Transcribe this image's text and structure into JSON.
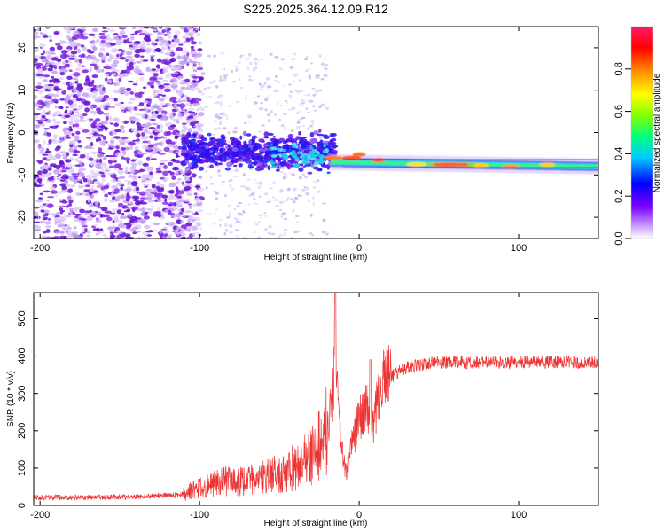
{
  "title": "S225.2025.364.12.09.R12",
  "chart_data": [
    {
      "type": "heatmap",
      "name": "spectrogram",
      "xlabel": "Height of straight line (km)",
      "ylabel": "Frequency (Hz)",
      "xlim": [
        -204,
        150
      ],
      "ylim": [
        -25,
        25
      ],
      "xticks": [
        -200,
        -100,
        0,
        100
      ],
      "yticks": [
        -20,
        -10,
        0,
        10,
        20
      ],
      "colorbar": {
        "label": "Normalized spectral amplitude",
        "range": [
          0,
          1
        ],
        "ticks": [
          0.0,
          0.2,
          0.4,
          0.6,
          0.8
        ],
        "stops": [
          "#ffffff",
          "#c89cff",
          "#7a00ff",
          "#0000ff",
          "#00c8ff",
          "#00ff80",
          "#80ff00",
          "#ffff00",
          "#ff8000",
          "#ff0000",
          "#ff1a66"
        ]
      },
      "line_track": {
        "start_km": -18,
        "end_km": 150,
        "frequency_hz_start": -7,
        "frequency_hz_end": -8,
        "peak_amplitude_km": [
          48,
          68
        ]
      }
    },
    {
      "type": "line",
      "name": "snr",
      "xlabel": "Height of straight line (km)",
      "ylabel": "SNR (10 * v/v)",
      "xlim": [
        -204,
        150
      ],
      "ylim": [
        0,
        570
      ],
      "xticks": [
        -200,
        -100,
        0,
        100
      ],
      "yticks": [
        0,
        100,
        200,
        300,
        400,
        500
      ],
      "color": "#ee3333",
      "series": [
        {
          "name": "SNR",
          "x": [
            -204,
            -190,
            -170,
            -150,
            -130,
            -110,
            -100,
            -90,
            -80,
            -70,
            -60,
            -50,
            -40,
            -30,
            -25,
            -20,
            -18,
            -16,
            -15,
            -14,
            -12,
            -10,
            -8,
            -6,
            -4,
            -2,
            0,
            2,
            4,
            6,
            8,
            10,
            12,
            14,
            16,
            18,
            20,
            25,
            30,
            35,
            40,
            50,
            60,
            70,
            80,
            90,
            100,
            110,
            120,
            130,
            140,
            150
          ],
          "y": [
            20,
            20,
            20,
            21,
            23,
            28,
            40,
            50,
            60,
            55,
            65,
            75,
            90,
            110,
            140,
            180,
            250,
            290,
            570,
            320,
            180,
            120,
            80,
            130,
            160,
            190,
            220,
            230,
            260,
            240,
            200,
            220,
            280,
            300,
            320,
            330,
            340,
            355,
            365,
            370,
            375,
            380,
            380,
            378,
            380,
            380,
            380,
            380,
            380,
            380,
            380,
            380
          ]
        }
      ]
    }
  ]
}
